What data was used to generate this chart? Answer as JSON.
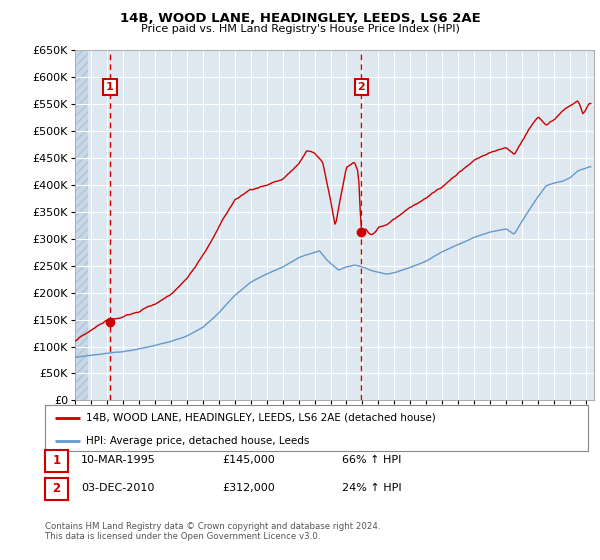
{
  "title": "14B, WOOD LANE, HEADINGLEY, LEEDS, LS6 2AE",
  "subtitle": "Price paid vs. HM Land Registry's House Price Index (HPI)",
  "ylim": [
    0,
    650000
  ],
  "yticks": [
    0,
    50000,
    100000,
    150000,
    200000,
    250000,
    300000,
    350000,
    400000,
    450000,
    500000,
    550000,
    600000,
    650000
  ],
  "xlim_start": 1993.0,
  "xlim_end": 2025.5,
  "legend_entries": [
    "14B, WOOD LANE, HEADINGLEY, LEEDS, LS6 2AE (detached house)",
    "HPI: Average price, detached house, Leeds"
  ],
  "sale1_date": 1995.19,
  "sale1_price": 145000,
  "sale1_label": "1",
  "sale2_date": 2010.92,
  "sale2_price": 312000,
  "sale2_label": "2",
  "table_rows": [
    [
      "1",
      "10-MAR-1995",
      "£145,000",
      "66% ↑ HPI"
    ],
    [
      "2",
      "03-DEC-2010",
      "£312,000",
      "24% ↑ HPI"
    ]
  ],
  "footer": "Contains HM Land Registry data © Crown copyright and database right 2024.\nThis data is licensed under the Open Government Licence v3.0.",
  "hpi_color": "#6699cc",
  "price_color": "#cc0000",
  "vline_color": "#cc0000",
  "bg_color": "#dde8f0",
  "grid_color": "#ffffff",
  "hatch_color": "#c8d8e8"
}
